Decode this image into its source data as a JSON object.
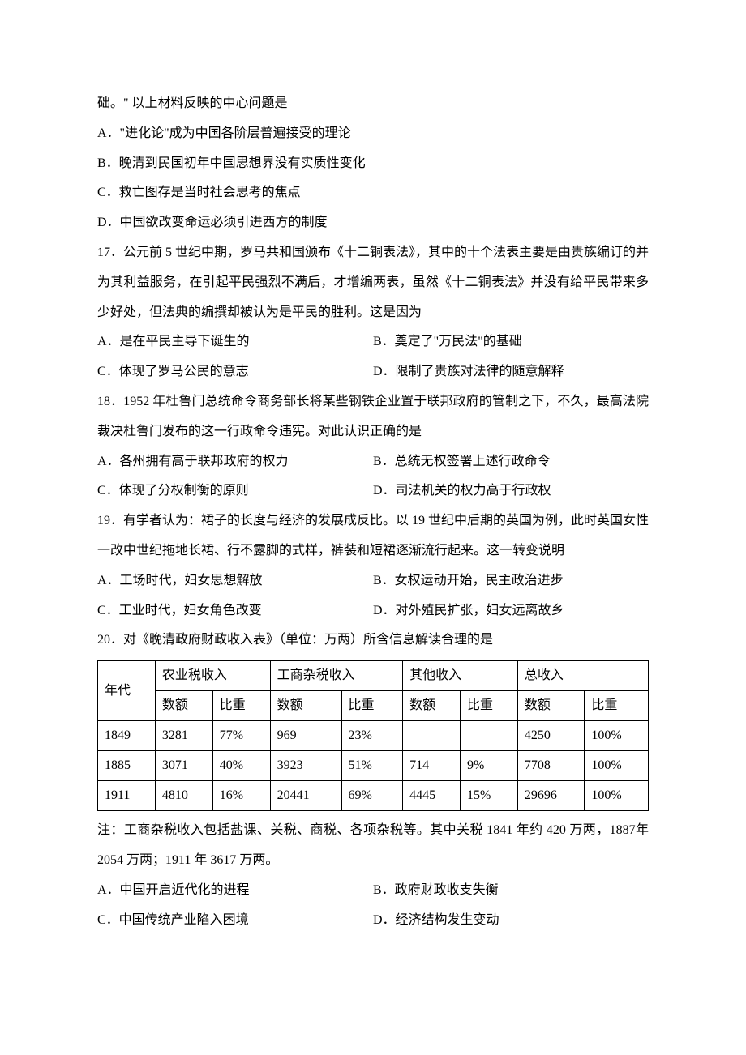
{
  "intro": {
    "trail": "础。\" 以上材料反映的中心问题是",
    "options": {
      "A": "A．\"进化论\"成为中国各阶层普遍接受的理论",
      "B": "B．晚清到民国初年中国思想界没有实质性变化",
      "C": "C．救亡图存是当时社会思考的焦点",
      "D": "D．中国欲改变命运必须引进西方的制度"
    }
  },
  "q17": {
    "stem": "17．公元前 5 世纪中期，罗马共和国颁布《十二铜表法》，其中的十个法表主要是由贵族编订的并为其利益服务，在引起平民强烈不满后，才增编两表，虽然《十二铜表法》并没有给平民带来多少好处，但法典的编撰却被认为是平民的胜利。这是因为",
    "options": {
      "A": "A．是在平民主导下诞生的",
      "B": "B．奠定了\"万民法\"的基础",
      "C": "C．体现了罗马公民的意志",
      "D": "D．限制了贵族对法律的随意解释"
    }
  },
  "q18": {
    "stem": "18．1952 年杜鲁门总统命令商务部长将某些钢铁企业置于联邦政府的管制之下，不久，最高法院裁决杜鲁门发布的这一行政命令违宪。对此认识正确的是",
    "options": {
      "A": "A．各州拥有高于联邦政府的权力",
      "B": "B．总统无权签署上述行政命令",
      "C": "C．体现了分权制衡的原则",
      "D": "D．司法机关的权力高于行政权"
    }
  },
  "q19": {
    "stem": "19．有学者认为：裙子的长度与经济的发展成反比。以 19 世纪中后期的英国为例，此时英国女性一改中世纪拖地长裙、行不露脚的式样，裤装和短裙逐渐流行起来。这一转变说明",
    "options": {
      "A": "A．工场时代，妇女思想解放",
      "B": "B．女权运动开始，民主政治进步",
      "C": "C．工业时代，妇女角色改变",
      "D": "D．对外殖民扩张，妇女远离故乡"
    }
  },
  "q20": {
    "stem": "20．对《晚清政府财政收入表》（单位：万两）所含信息解读合理的是",
    "table": {
      "col_group_headers": [
        "年代",
        "农业税收入",
        "工商杂税收入",
        "其他收入",
        "总收入"
      ],
      "sub_headers": [
        "数额",
        "比重"
      ],
      "rows": [
        {
          "year": "1849",
          "ag_amt": "3281",
          "ag_pct": "77%",
          "ind_amt": "969",
          "ind_pct": "23%",
          "oth_amt": "",
          "oth_pct": "",
          "tot_amt": "4250",
          "tot_pct": "100%"
        },
        {
          "year": "1885",
          "ag_amt": "3071",
          "ag_pct": "40%",
          "ind_amt": "3923",
          "ind_pct": "51%",
          "oth_amt": "714",
          "oth_pct": "9%",
          "tot_amt": "7708",
          "tot_pct": "100%"
        },
        {
          "year": "1911",
          "ag_amt": "4810",
          "ag_pct": "16%",
          "ind_amt": "20441",
          "ind_pct": "69%",
          "oth_amt": "4445",
          "oth_pct": "15%",
          "tot_amt": "29696",
          "tot_pct": "100%"
        }
      ],
      "border_color": "#000000",
      "cell_padding": "6px 8px",
      "font_size": 16
    },
    "note": "注：工商杂税收入包括盐课、关税、商税、各项杂税等。其中关税 1841 年约 420 万两，1887年 2054 万两；1911 年 3617 万两。",
    "options": {
      "A": "A．中国开启近代化的进程",
      "B": "B．政府财政收支失衡",
      "C": "C．中国传统产业陷入困境",
      "D": "D．经济结构发生变动"
    }
  }
}
